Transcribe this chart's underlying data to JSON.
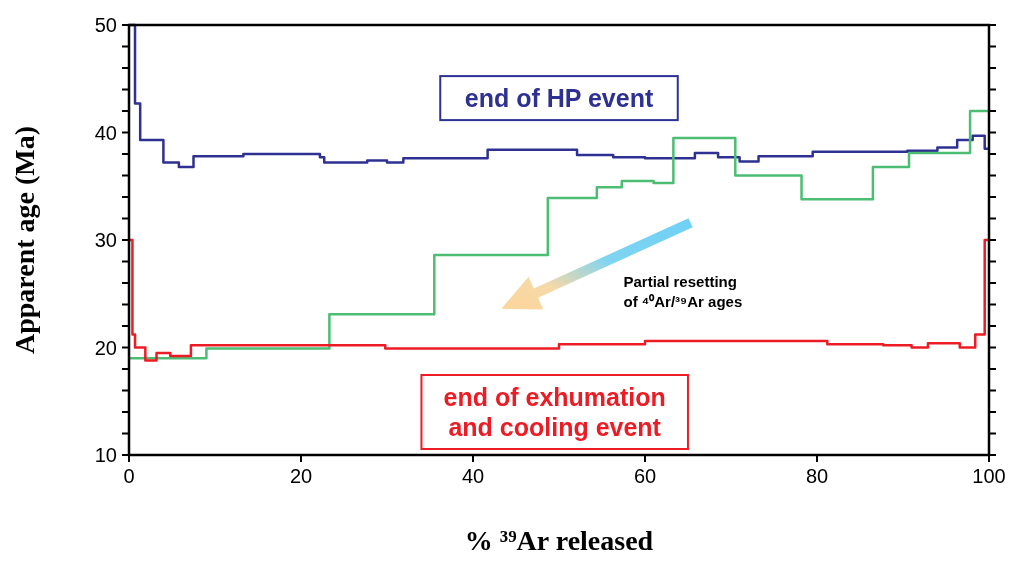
{
  "chart_data": {
    "type": "step",
    "xlabel": "% ³⁹Ar released",
    "ylabel": "Apparent age (Ma)",
    "xlim": [
      0,
      100
    ],
    "xticks": [
      0,
      20,
      40,
      60,
      80,
      100
    ],
    "ylim": [
      10,
      50
    ],
    "yticks": [
      10,
      {
        "value": 12,
        "label": null
      },
      {
        "value": 14,
        "label": null
      },
      {
        "value": 16,
        "label": null
      },
      {
        "value": 18,
        "label": null
      },
      20,
      {
        "value": 22,
        "label": null
      },
      {
        "value": 24,
        "label": null
      },
      {
        "value": 26,
        "label": null
      },
      {
        "value": 28,
        "label": null
      },
      30,
      {
        "value": 32,
        "label": null
      },
      {
        "value": 34,
        "label": null
      },
      {
        "value": 36,
        "label": null
      },
      {
        "value": 38,
        "label": null
      },
      40,
      {
        "value": 42,
        "label": null
      },
      {
        "value": 44,
        "label": null
      },
      {
        "value": 46,
        "label": null
      },
      {
        "value": 48,
        "label": null
      },
      50
    ],
    "grid": false,
    "annotations": [
      "Partial resetting of ⁴⁰Ar/³⁹Ar ages"
    ],
    "series": [
      {
        "name": "end of HP event",
        "color": "#2e3192",
        "x": [
          0,
          0.7,
          1.3,
          2,
          4,
          5.8,
          7.5,
          13.3,
          22.2,
          22.7,
          27.7,
          30,
          31.9,
          41.7,
          52.1,
          56.3,
          60,
          65.8,
          68.5,
          71,
          73.2,
          79.5,
          90.5,
          94,
          96.3,
          98.1,
          99.5,
          100
        ],
        "values": [
          50,
          42.7,
          39.3,
          39.3,
          37.2,
          36.8,
          37.8,
          38,
          37.7,
          37.2,
          37.4,
          37.2,
          37.6,
          38.4,
          37.9,
          37.7,
          37.6,
          38.1,
          37.7,
          37.3,
          37.8,
          38.2,
          38.3,
          38.6,
          39.3,
          39.7,
          38.5,
          38.5
        ]
      },
      {
        "color": "#4dbd74",
        "x": [
          0,
          9,
          23.3,
          35.5,
          48.7,
          54.4,
          57.3,
          61,
          63.3,
          70.5,
          78.2,
          86.5,
          90.7,
          97.8,
          100
        ],
        "values": [
          19,
          19.9,
          23.1,
          28.6,
          33.9,
          34.9,
          35.5,
          35.3,
          39.5,
          36,
          33.8,
          36.8,
          38.1,
          42,
          42
        ]
      },
      {
        "name": "end of exhumation and cooling event",
        "color": "#ed1c24",
        "x": [
          0,
          0.4,
          0.7,
          1.9,
          3.2,
          4.8,
          7.2,
          29.8,
          50,
          60,
          81.2,
          87.7,
          91,
          92.9,
          96.6,
          98.4,
          99.5,
          100
        ],
        "values": [
          30,
          21.2,
          20,
          18.8,
          19.5,
          19.2,
          20.2,
          19.9,
          20.3,
          20.6,
          20.3,
          20.2,
          20,
          20.4,
          20,
          21.2,
          30,
          30
        ]
      }
    ]
  }
}
